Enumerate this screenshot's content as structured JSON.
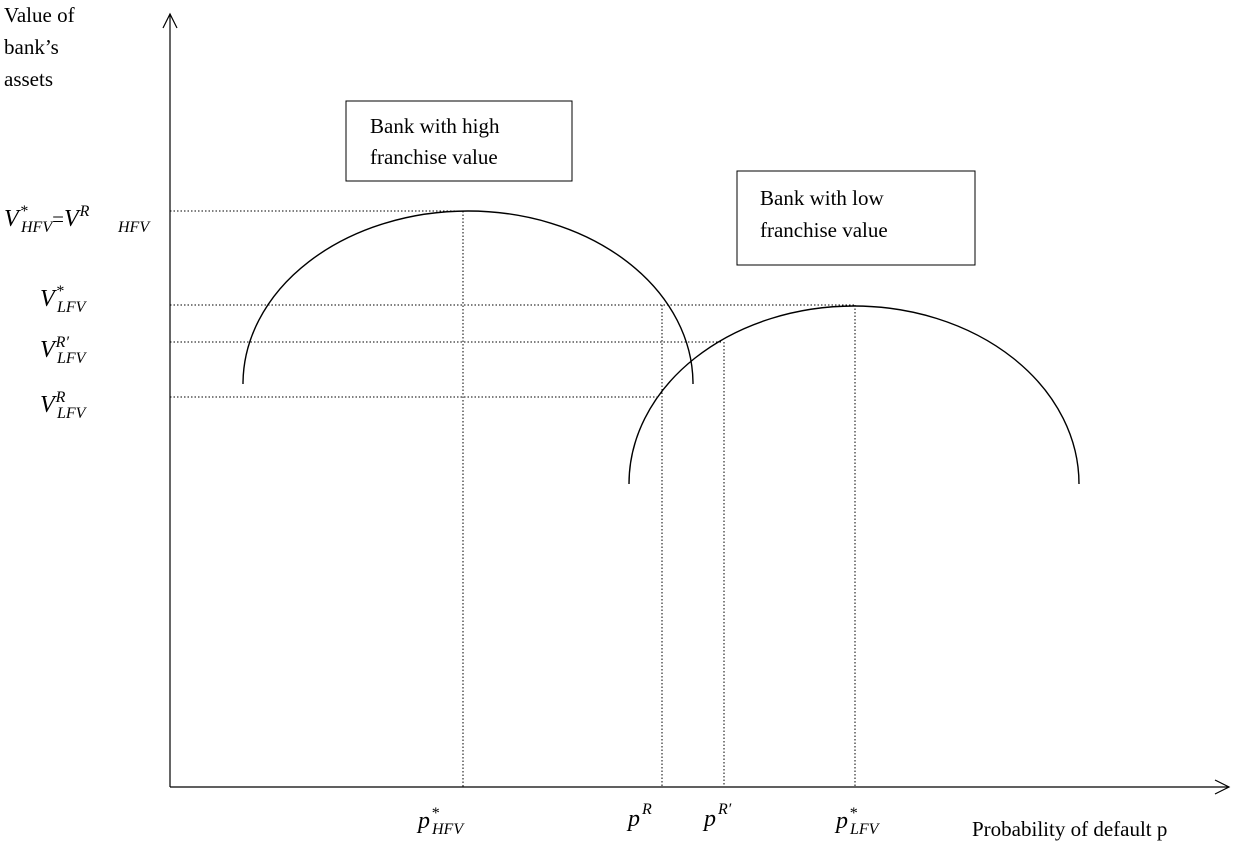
{
  "y_axis_label": [
    "Value of",
    "bank’s",
    "assets"
  ],
  "x_axis_label": "Probability of default p",
  "boxes": [
    {
      "lines": [
        "Bank with high",
        "franchise value"
      ]
    },
    {
      "lines": [
        "Bank with low",
        "franchise value"
      ]
    }
  ],
  "y_labels": [
    {
      "left": {
        "base": "V",
        "sup": "*",
        "sub": "HFV"
      },
      "sep": "=",
      "right": {
        "base": "V",
        "sup": "R",
        "sub": "HFV"
      }
    },
    {
      "base": "V",
      "sup": "*",
      "sub": "LFV"
    },
    {
      "base": "V",
      "sup": "R′",
      "sub": "LFV"
    },
    {
      "base": "V",
      "sup": "R",
      "sub": "LFV"
    }
  ],
  "x_labels": [
    {
      "base": "p",
      "sup": "*",
      "sub": "HFV"
    },
    {
      "base": "p",
      "sup": "R"
    },
    {
      "base": "p",
      "sup": "R′"
    },
    {
      "base": "p",
      "sup": "*",
      "sub": "LFV"
    }
  ]
}
